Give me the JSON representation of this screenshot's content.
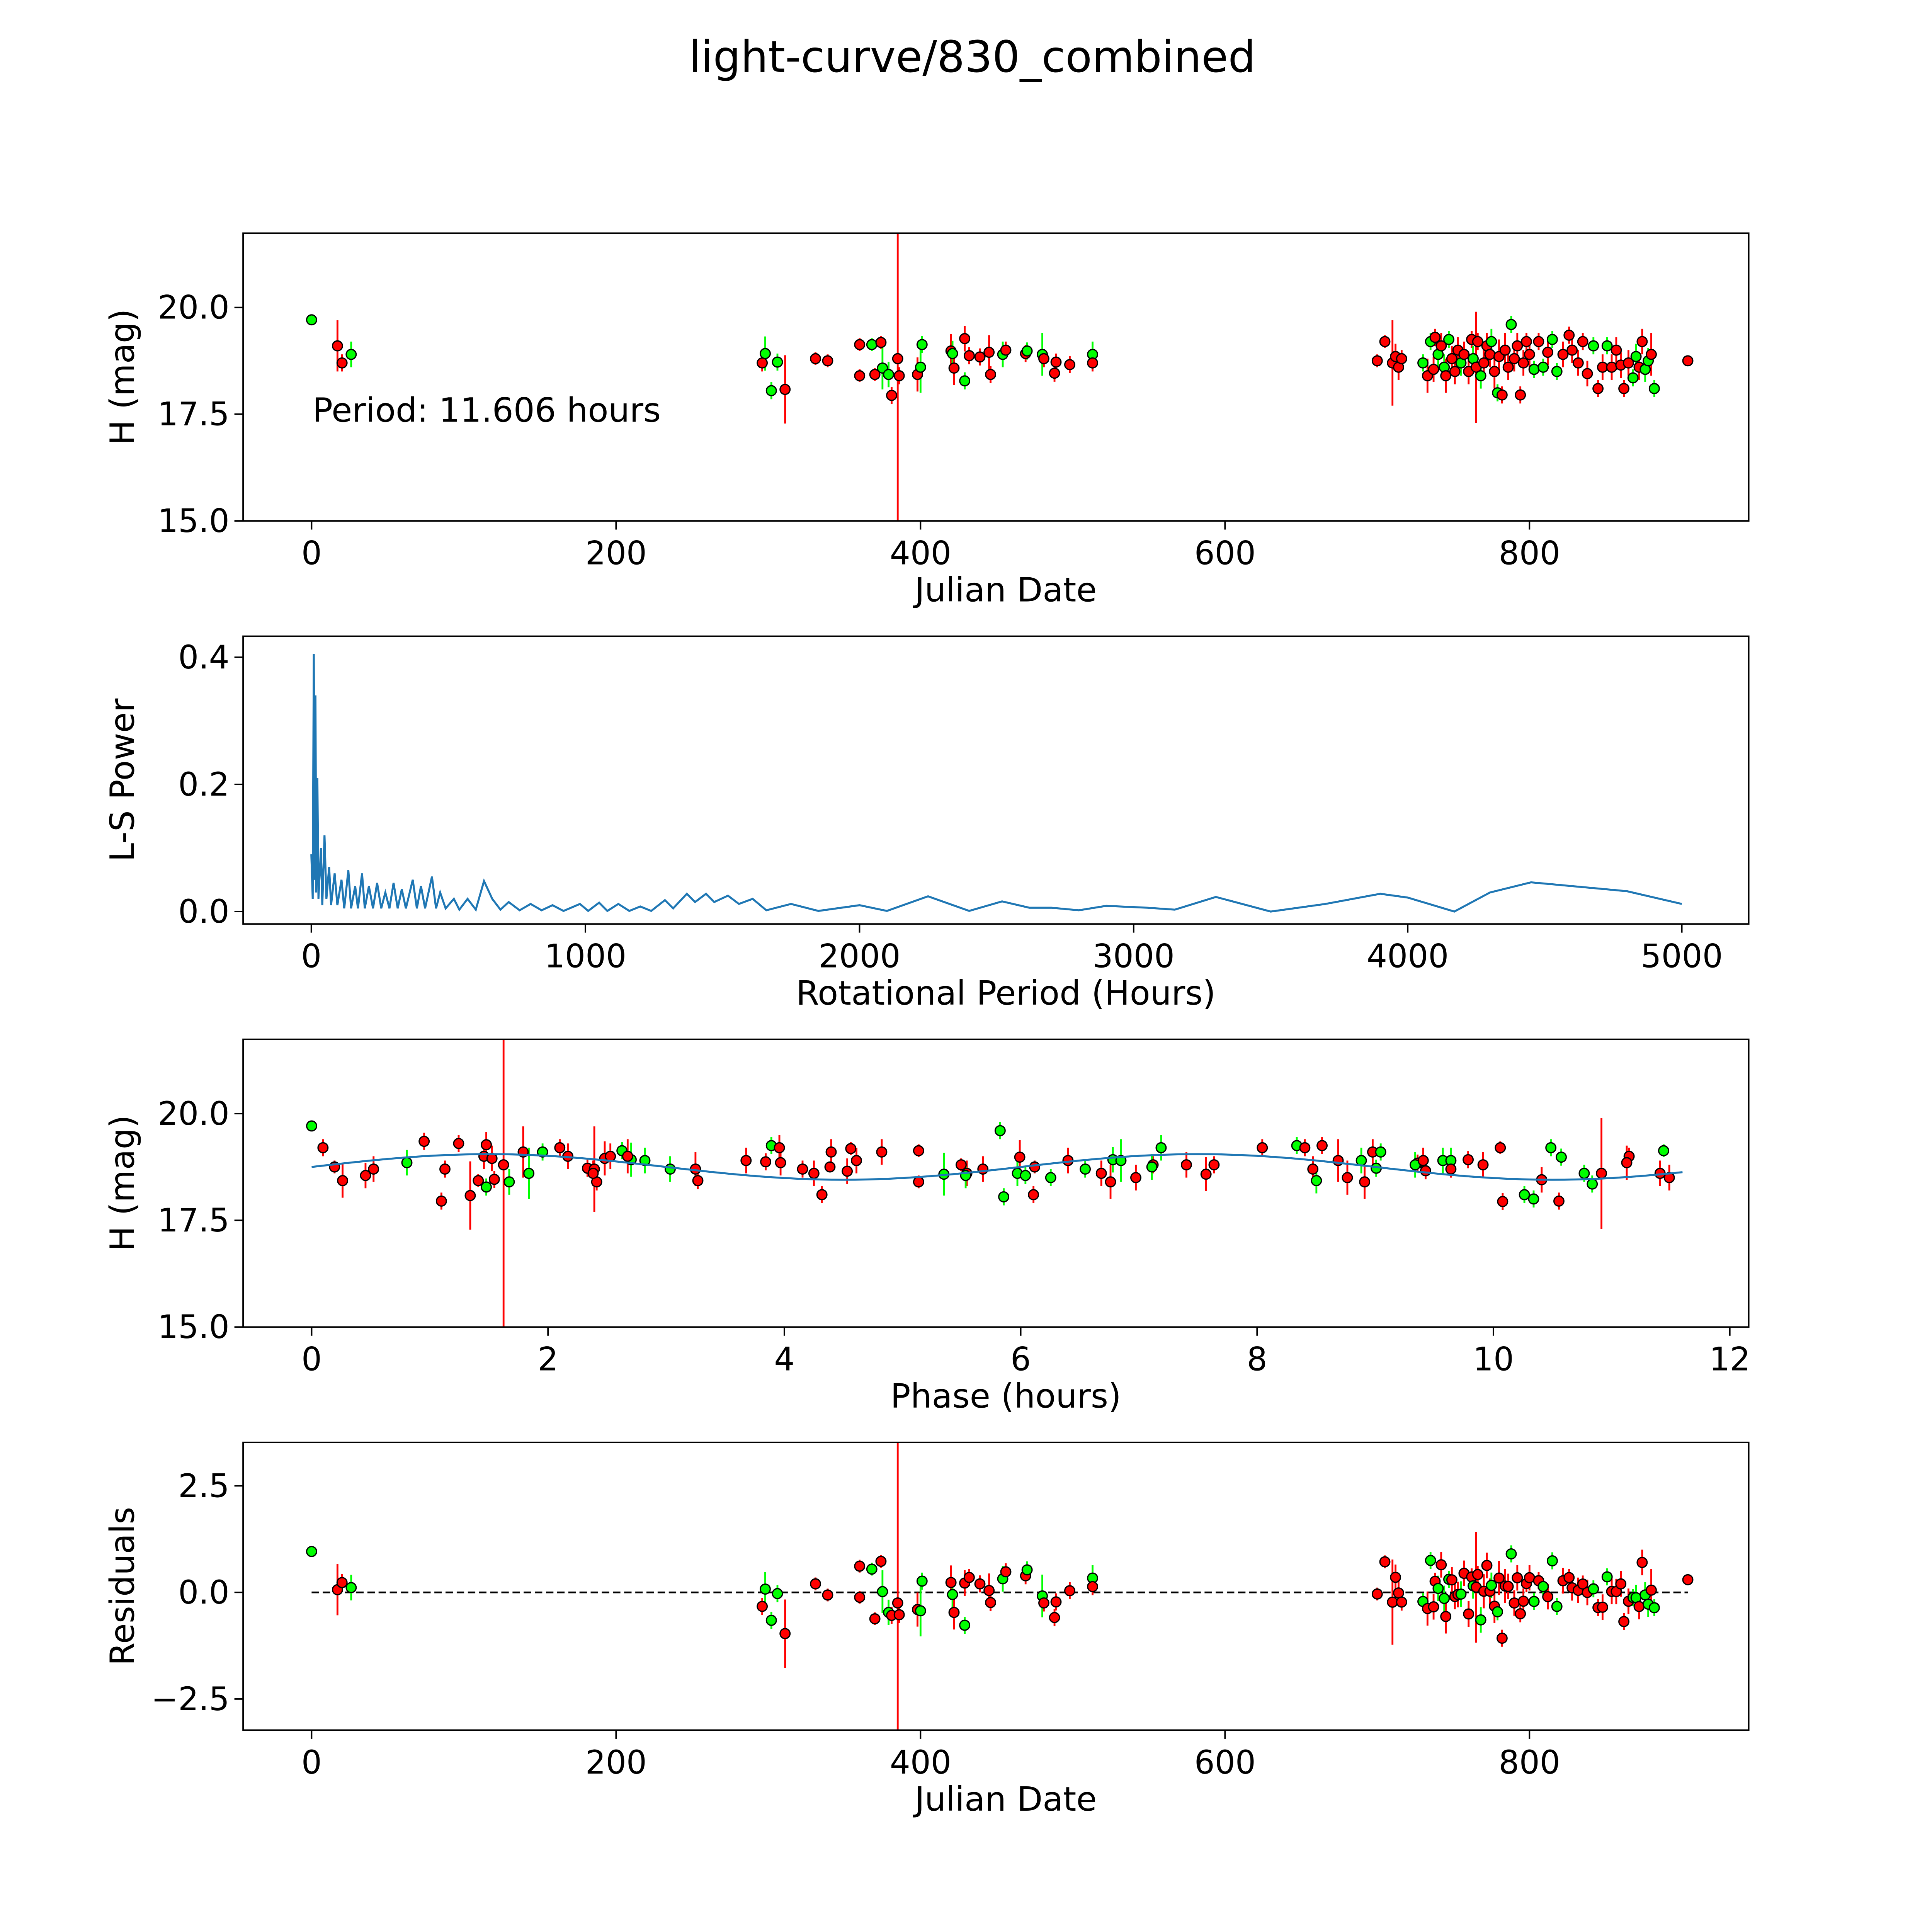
{
  "figure_title": "light-curve/830_combined",
  "annotation": "Period: 11.606 hours",
  "colors": {
    "filter_a": "#ff0000",
    "filter_b": "#00ff00",
    "model": "#1f77b4",
    "edge": "#000000"
  },
  "chart_data": [
    {
      "type": "scatter",
      "name": "light-curve",
      "xlabel": "Julian Date",
      "ylabel": "H (mag)",
      "xlim": [
        -45,
        944
      ],
      "ylim": [
        15.0,
        21.74
      ],
      "xticks": [
        0,
        200,
        400,
        600,
        800
      ],
      "xtick_labels": [
        "0",
        "200",
        "400",
        "600",
        "800"
      ],
      "yticks": [
        15.0,
        17.5,
        20.0
      ],
      "ytick_labels": [
        "15.0",
        "17.5",
        "20.0"
      ],
      "points_format": [
        "julian_date",
        "H_mag",
        "error",
        "filter (r=red, g=green)"
      ],
      "points": [
        [
          0,
          19.71,
          0.1,
          "g"
        ],
        [
          17,
          19.1,
          0.6,
          "r"
        ],
        [
          20,
          18.7,
          0.2,
          "r"
        ],
        [
          26,
          18.9,
          0.3,
          "g"
        ],
        [
          296,
          18.7,
          0.2,
          "r"
        ],
        [
          298,
          18.92,
          0.4,
          "g"
        ],
        [
          302,
          18.05,
          0.2,
          "g"
        ],
        [
          306,
          18.72,
          0.2,
          "g"
        ],
        [
          311,
          18.08,
          0.8,
          "r"
        ],
        [
          331,
          18.8,
          0.15,
          "r"
        ],
        [
          339,
          18.75,
          0.15,
          "r"
        ],
        [
          360,
          19.13,
          0.15,
          "r"
        ],
        [
          360,
          18.4,
          0.15,
          "r"
        ],
        [
          368,
          19.13,
          0.15,
          "g"
        ],
        [
          370,
          18.43,
          0.15,
          "r"
        ],
        [
          374,
          19.18,
          0.15,
          "r"
        ],
        [
          375,
          18.58,
          0.5,
          "g"
        ],
        [
          379,
          18.43,
          0.3,
          "g"
        ],
        [
          381,
          17.94,
          0.2,
          "r"
        ],
        [
          385,
          18.8,
          6.1,
          "r"
        ],
        [
          386,
          18.4,
          0.2,
          "r"
        ],
        [
          398,
          18.43,
          0.4,
          "r"
        ],
        [
          400,
          18.6,
          0.6,
          "g"
        ],
        [
          401,
          19.13,
          0.2,
          "g"
        ],
        [
          420,
          18.98,
          0.4,
          "r"
        ],
        [
          421,
          18.92,
          0.3,
          "g"
        ],
        [
          422,
          18.58,
          0.4,
          "r"
        ],
        [
          429,
          19.27,
          0.3,
          "r"
        ],
        [
          429,
          18.28,
          0.2,
          "g"
        ],
        [
          432,
          18.87,
          0.2,
          "r"
        ],
        [
          439,
          18.84,
          0.2,
          "r"
        ],
        [
          445,
          18.95,
          0.4,
          "r"
        ],
        [
          446,
          18.43,
          0.2,
          "r"
        ],
        [
          454,
          18.9,
          0.3,
          "g"
        ],
        [
          456,
          19.0,
          0.2,
          "r"
        ],
        [
          469,
          18.92,
          0.2,
          "r"
        ],
        [
          470,
          18.98,
          0.2,
          "g"
        ],
        [
          480,
          18.9,
          0.5,
          "g"
        ],
        [
          481,
          18.8,
          0.2,
          "r"
        ],
        [
          489,
          18.72,
          0.2,
          "r"
        ],
        [
          488,
          18.46,
          0.2,
          "r"
        ],
        [
          498,
          18.66,
          0.2,
          "r"
        ],
        [
          513,
          18.9,
          0.3,
          "g"
        ],
        [
          513,
          18.7,
          0.2,
          "r"
        ],
        [
          700,
          18.75,
          0.15,
          "r"
        ],
        [
          705,
          19.2,
          0.15,
          "r"
        ],
        [
          710,
          18.7,
          1.0,
          "r"
        ],
        [
          712,
          18.85,
          0.3,
          "r"
        ],
        [
          714,
          18.6,
          0.3,
          "r"
        ],
        [
          716,
          18.8,
          0.2,
          "r"
        ],
        [
          730,
          18.7,
          0.2,
          "g"
        ],
        [
          733,
          18.4,
          0.4,
          "r"
        ],
        [
          735,
          19.2,
          0.2,
          "g"
        ],
        [
          737,
          18.55,
          0.3,
          "r"
        ],
        [
          738,
          19.3,
          0.2,
          "r"
        ],
        [
          740,
          18.9,
          0.3,
          "g"
        ],
        [
          742,
          19.1,
          0.3,
          "r"
        ],
        [
          744,
          18.6,
          0.3,
          "g"
        ],
        [
          745,
          18.4,
          0.4,
          "r"
        ],
        [
          747,
          19.25,
          0.2,
          "g"
        ],
        [
          749,
          18.8,
          0.3,
          "r"
        ],
        [
          751,
          18.5,
          0.3,
          "r"
        ],
        [
          753,
          19.0,
          0.3,
          "r"
        ],
        [
          755,
          18.7,
          0.3,
          "g"
        ],
        [
          757,
          18.9,
          0.3,
          "r"
        ],
        [
          760,
          18.5,
          0.3,
          "r"
        ],
        [
          762,
          19.25,
          0.2,
          "r"
        ],
        [
          763,
          18.8,
          0.3,
          "g"
        ],
        [
          765,
          18.6,
          1.3,
          "r"
        ],
        [
          766,
          19.2,
          0.2,
          "r"
        ],
        [
          768,
          18.4,
          0.3,
          "g"
        ],
        [
          770,
          18.7,
          0.4,
          "r"
        ],
        [
          772,
          19.1,
          0.3,
          "r"
        ],
        [
          774,
          18.9,
          0.3,
          "r"
        ],
        [
          775,
          19.2,
          0.3,
          "g"
        ],
        [
          777,
          18.5,
          0.4,
          "r"
        ],
        [
          779,
          18.0,
          0.2,
          "g"
        ],
        [
          780,
          18.85,
          0.4,
          "r"
        ],
        [
          782,
          17.95,
          0.2,
          "r"
        ],
        [
          784,
          19.0,
          0.4,
          "r"
        ],
        [
          786,
          18.6,
          0.3,
          "r"
        ],
        [
          788,
          19.6,
          0.2,
          "g"
        ],
        [
          790,
          18.8,
          0.3,
          "r"
        ],
        [
          792,
          19.1,
          0.3,
          "r"
        ],
        [
          794,
          17.95,
          0.2,
          "r"
        ],
        [
          796,
          18.7,
          0.3,
          "r"
        ],
        [
          798,
          19.2,
          0.2,
          "r"
        ],
        [
          800,
          18.9,
          0.3,
          "r"
        ],
        [
          803,
          18.55,
          0.2,
          "g"
        ],
        [
          806,
          19.2,
          0.2,
          "r"
        ],
        [
          809,
          18.6,
          0.2,
          "g"
        ],
        [
          812,
          18.95,
          0.3,
          "r"
        ],
        [
          815,
          19.25,
          0.2,
          "g"
        ],
        [
          818,
          18.5,
          0.2,
          "g"
        ],
        [
          822,
          18.9,
          0.3,
          "r"
        ],
        [
          826,
          19.35,
          0.2,
          "r"
        ],
        [
          828,
          19.0,
          0.3,
          "r"
        ],
        [
          832,
          18.7,
          0.3,
          "r"
        ],
        [
          835,
          19.2,
          0.2,
          "r"
        ],
        [
          838,
          18.45,
          0.3,
          "r"
        ],
        [
          842,
          19.1,
          0.2,
          "g"
        ],
        [
          845,
          18.1,
          0.2,
          "r"
        ],
        [
          848,
          18.6,
          0.3,
          "r"
        ],
        [
          851,
          19.1,
          0.2,
          "g"
        ],
        [
          854,
          18.6,
          0.3,
          "r"
        ],
        [
          857,
          19.0,
          0.3,
          "r"
        ],
        [
          860,
          18.65,
          0.3,
          "r"
        ],
        [
          862,
          18.1,
          0.2,
          "r"
        ],
        [
          865,
          18.7,
          0.3,
          "r"
        ],
        [
          868,
          18.35,
          0.2,
          "g"
        ],
        [
          870,
          18.85,
          0.3,
          "g"
        ],
        [
          872,
          18.6,
          0.3,
          "r"
        ],
        [
          874,
          19.2,
          0.3,
          "r"
        ],
        [
          876,
          18.55,
          0.3,
          "g"
        ],
        [
          878,
          18.75,
          0.3,
          "g"
        ],
        [
          880,
          18.9,
          0.5,
          "r"
        ],
        [
          882,
          18.1,
          0.2,
          "g"
        ],
        [
          904,
          18.75,
          0.1,
          "r"
        ]
      ]
    },
    {
      "type": "line",
      "name": "periodogram",
      "xlabel": "Rotational Period (Hours)",
      "ylabel": "L-S Power",
      "xlim": [
        -249,
        5244
      ],
      "ylim": [
        -0.0195,
        0.433
      ],
      "xticks": [
        0,
        1000,
        2000,
        3000,
        4000,
        5000
      ],
      "xtick_labels": [
        "0",
        "1000",
        "2000",
        "3000",
        "4000",
        "5000"
      ],
      "yticks": [
        0.0,
        0.2,
        0.4
      ],
      "ytick_labels": [
        "0.0",
        "0.2",
        "0.4"
      ],
      "points_format": [
        "period_hours",
        "power"
      ],
      "points": [
        [
          0,
          0.09
        ],
        [
          5,
          0.02
        ],
        [
          9,
          0.405
        ],
        [
          12,
          0.05
        ],
        [
          15,
          0.34
        ],
        [
          18,
          0.03
        ],
        [
          22,
          0.21
        ],
        [
          26,
          0.02
        ],
        [
          35,
          0.1
        ],
        [
          40,
          0.01
        ],
        [
          48,
          0.12
        ],
        [
          55,
          0.02
        ],
        [
          65,
          0.07
        ],
        [
          72,
          0.01
        ],
        [
          85,
          0.06
        ],
        [
          95,
          0.01
        ],
        [
          110,
          0.05
        ],
        [
          120,
          0.005
        ],
        [
          135,
          0.065
        ],
        [
          145,
          0.005
        ],
        [
          160,
          0.04
        ],
        [
          170,
          0.005
        ],
        [
          185,
          0.06
        ],
        [
          195,
          0.005
        ],
        [
          210,
          0.04
        ],
        [
          225,
          0.005
        ],
        [
          240,
          0.045
        ],
        [
          255,
          0.005
        ],
        [
          270,
          0.03
        ],
        [
          285,
          0.005
        ],
        [
          300,
          0.045
        ],
        [
          315,
          0.005
        ],
        [
          330,
          0.035
        ],
        [
          345,
          0.005
        ],
        [
          370,
          0.05
        ],
        [
          385,
          0.005
        ],
        [
          400,
          0.04
        ],
        [
          415,
          0.005
        ],
        [
          440,
          0.055
        ],
        [
          455,
          0.005
        ],
        [
          470,
          0.03
        ],
        [
          490,
          0.005
        ],
        [
          520,
          0.02
        ],
        [
          540,
          0.003
        ],
        [
          570,
          0.02
        ],
        [
          600,
          0.003
        ],
        [
          630,
          0.048
        ],
        [
          660,
          0.02
        ],
        [
          690,
          0.003
        ],
        [
          720,
          0.015
        ],
        [
          760,
          0.002
        ],
        [
          800,
          0.012
        ],
        [
          840,
          0.002
        ],
        [
          880,
          0.01
        ],
        [
          920,
          0.001
        ],
        [
          980,
          0.012
        ],
        [
          1010,
          0.001
        ],
        [
          1050,
          0.014
        ],
        [
          1080,
          0.001
        ],
        [
          1120,
          0.012
        ],
        [
          1160,
          0.001
        ],
        [
          1200,
          0.008
        ],
        [
          1240,
          0.001
        ],
        [
          1290,
          0.018
        ],
        [
          1320,
          0.005
        ],
        [
          1370,
          0.028
        ],
        [
          1400,
          0.015
        ],
        [
          1440,
          0.028
        ],
        [
          1470,
          0.015
        ],
        [
          1520,
          0.025
        ],
        [
          1560,
          0.012
        ],
        [
          1610,
          0.02
        ],
        [
          1660,
          0.002
        ],
        [
          1750,
          0.012
        ],
        [
          1850,
          0.001
        ],
        [
          2000,
          0.01
        ],
        [
          2100,
          0.001
        ],
        [
          2250,
          0.024
        ],
        [
          2400,
          0.001
        ],
        [
          2520,
          0.016
        ],
        [
          2620,
          0.006
        ],
        [
          2700,
          0.006
        ],
        [
          2800,
          0.002
        ],
        [
          2900,
          0.009
        ],
        [
          3050,
          0.006
        ],
        [
          3150,
          0.003
        ],
        [
          3300,
          0.023
        ],
        [
          3500,
          0.0
        ],
        [
          3700,
          0.012
        ],
        [
          3900,
          0.028
        ],
        [
          4000,
          0.022
        ],
        [
          4170,
          0.0
        ],
        [
          4300,
          0.03
        ],
        [
          4450,
          0.046
        ],
        [
          4600,
          0.04
        ],
        [
          4800,
          0.032
        ],
        [
          5000,
          0.012
        ]
      ]
    },
    {
      "type": "scatter",
      "name": "phased-light-curve",
      "xlabel": "Phase (hours)",
      "ylabel": "H (mag)",
      "xlim": [
        -0.58,
        12.16
      ],
      "ylim": [
        15.0,
        21.74
      ],
      "xticks": [
        0,
        2,
        4,
        6,
        8,
        10,
        12
      ],
      "xtick_labels": [
        "0",
        "2",
        "4",
        "6",
        "8",
        "10",
        "12"
      ],
      "yticks": [
        15.0,
        17.5,
        20.0
      ],
      "ytick_labels": [
        "15.0",
        "17.5",
        "20.0"
      ],
      "period_hours": 11.606,
      "model": {
        "mean": 18.75,
        "amplitude": 0.3,
        "peak_phase": 1.5,
        "cycle_hours": 6.0
      }
    },
    {
      "type": "scatter",
      "name": "residuals",
      "xlabel": "Julian Date",
      "ylabel": "Residuals",
      "xlim": [
        -45,
        944
      ],
      "ylim": [
        -3.23,
        3.52
      ],
      "xticks": [
        0,
        200,
        400,
        600,
        800
      ],
      "xtick_labels": [
        "0",
        "200",
        "400",
        "600",
        "800"
      ],
      "yticks": [
        -2.5,
        0.0,
        2.5
      ],
      "ytick_labels": [
        "−2.5",
        "0.0",
        "2.5"
      ],
      "zero_line": true
    }
  ]
}
